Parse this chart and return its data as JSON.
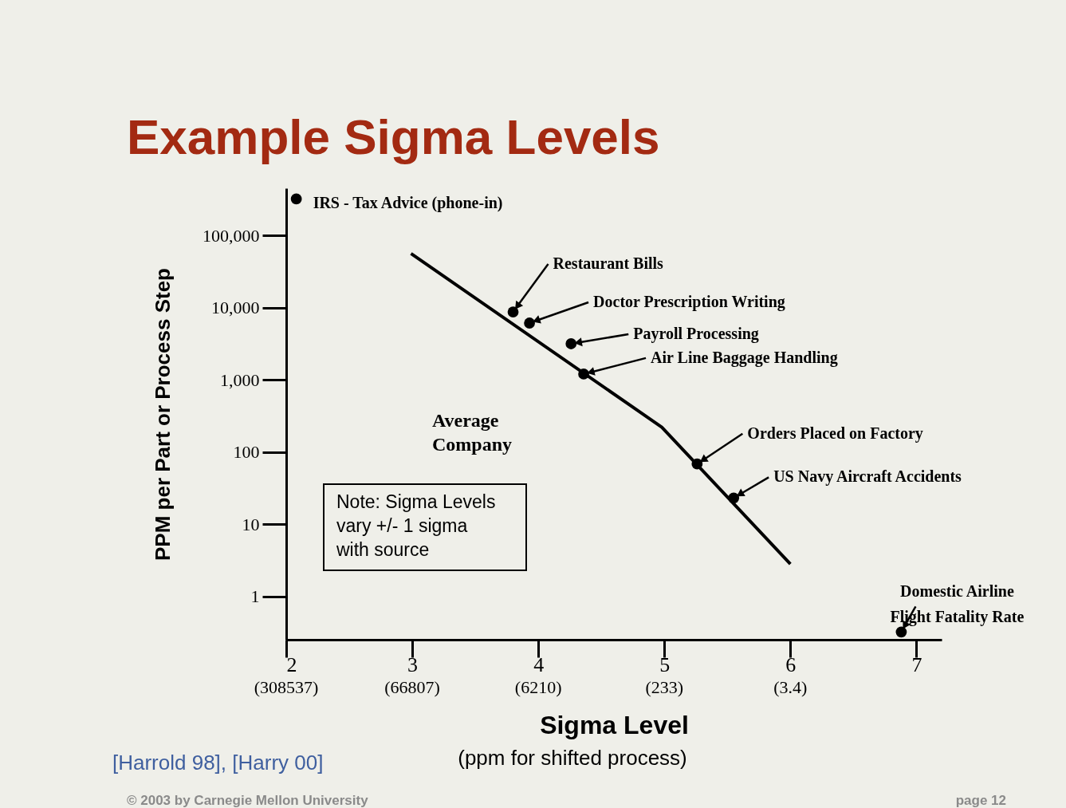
{
  "chart_data": {
    "type": "scatter",
    "title": "Example Sigma Levels",
    "xlabel": "Sigma Level",
    "ylabel": "PPM per Part or Process Step",
    "log": "y",
    "grid": false,
    "marker": "circle",
    "xlim": [
      2,
      7.2
    ],
    "ylim": [
      0.25,
      450000
    ],
    "xticks": [
      2,
      3,
      4,
      5,
      6,
      7
    ],
    "yticks": [
      1,
      10,
      100,
      {
        "value": 1000,
        "label": "1,000"
      },
      {
        "value": 10000,
        "label": "10,000"
      },
      {
        "value": 100000,
        "label": "100,000"
      }
    ],
    "series": [
      {
        "type": "scatter",
        "color": "#000000",
        "x": [
          2.08,
          3.8,
          3.93,
          4.26,
          4.36,
          5.26,
          5.55,
          6.88
        ],
        "values": [
          320000,
          8700,
          6100,
          3150,
          1200,
          68,
          23,
          0.32
        ]
      },
      {
        "type": "line",
        "color": "#000000",
        "marker": "none",
        "line_style": "solid",
        "x": [
          2.99,
          4.98,
          6.0
        ],
        "values": [
          56000,
          220,
          2.8
        ]
      }
    ],
    "annotations": [
      {
        "text": "IRS - Tax Advice (phone-in)",
        "x": 2.08,
        "y": 320000
      },
      {
        "text": "Restaurant Bills",
        "x": 3.8,
        "y": 8700
      },
      {
        "text": "Doctor Prescription Writing",
        "x": 3.93,
        "y": 6100
      },
      {
        "text": "Payroll Processing",
        "x": 4.26,
        "y": 3150
      },
      {
        "text": "Air Line Baggage Handling",
        "x": 4.36,
        "y": 1200
      },
      {
        "text": "Orders Placed on Factory",
        "x": 5.26,
        "y": 68
      },
      {
        "text": "US Navy Aircraft Accidents",
        "x": 5.55,
        "y": 23
      },
      {
        "text": "Domestic Airline\nFlight Fatality Rate",
        "x": 6.88,
        "y": 0.32
      },
      "(308537)",
      "(66807)",
      "(6210)",
      "(233)",
      "(3.4)",
      "Average\nCompany",
      "Note: Sigma Levels\nvary +/- 1 sigma\nwith source",
      "(ppm for shifted process)",
      "[Harrold 98], [Harry 00]",
      "© 2003 by Carnegie Mellon University",
      "page 12"
    ]
  }
}
